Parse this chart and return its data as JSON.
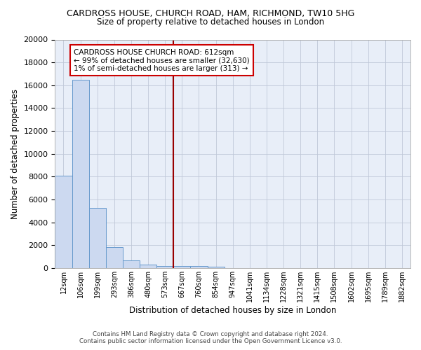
{
  "title1": "CARDROSS HOUSE, CHURCH ROAD, HAM, RICHMOND, TW10 5HG",
  "title2": "Size of property relative to detached houses in London",
  "xlabel": "Distribution of detached houses by size in London",
  "ylabel": "Number of detached properties",
  "footer1": "Contains HM Land Registry data © Crown copyright and database right 2024.",
  "footer2": "Contains public sector information licensed under the Open Government Licence v3.0.",
  "bin_labels": [
    "12sqm",
    "106sqm",
    "199sqm",
    "293sqm",
    "386sqm",
    "480sqm",
    "573sqm",
    "667sqm",
    "760sqm",
    "854sqm",
    "947sqm",
    "1041sqm",
    "1134sqm",
    "1228sqm",
    "1321sqm",
    "1415sqm",
    "1508sqm",
    "1602sqm",
    "1695sqm",
    "1789sqm",
    "1882sqm"
  ],
  "bar_heights": [
    8100,
    16500,
    5300,
    1850,
    700,
    300,
    220,
    220,
    170,
    130,
    0,
    0,
    0,
    0,
    0,
    0,
    0,
    0,
    0,
    0,
    0
  ],
  "bar_color": "#ccd9f0",
  "bar_edge_color": "#6699cc",
  "vline_x_index": 6.5,
  "vline_color": "#990000",
  "annotation_text": "CARDROSS HOUSE CHURCH ROAD: 612sqm\n← 99% of detached houses are smaller (32,630)\n1% of semi-detached houses are larger (313) →",
  "annotation_box_color": "white",
  "annotation_box_edge": "#cc0000",
  "ylim": [
    0,
    20000
  ],
  "yticks": [
    0,
    2000,
    4000,
    6000,
    8000,
    10000,
    12000,
    14000,
    16000,
    18000,
    20000
  ],
  "background_color": "#e8eef8"
}
